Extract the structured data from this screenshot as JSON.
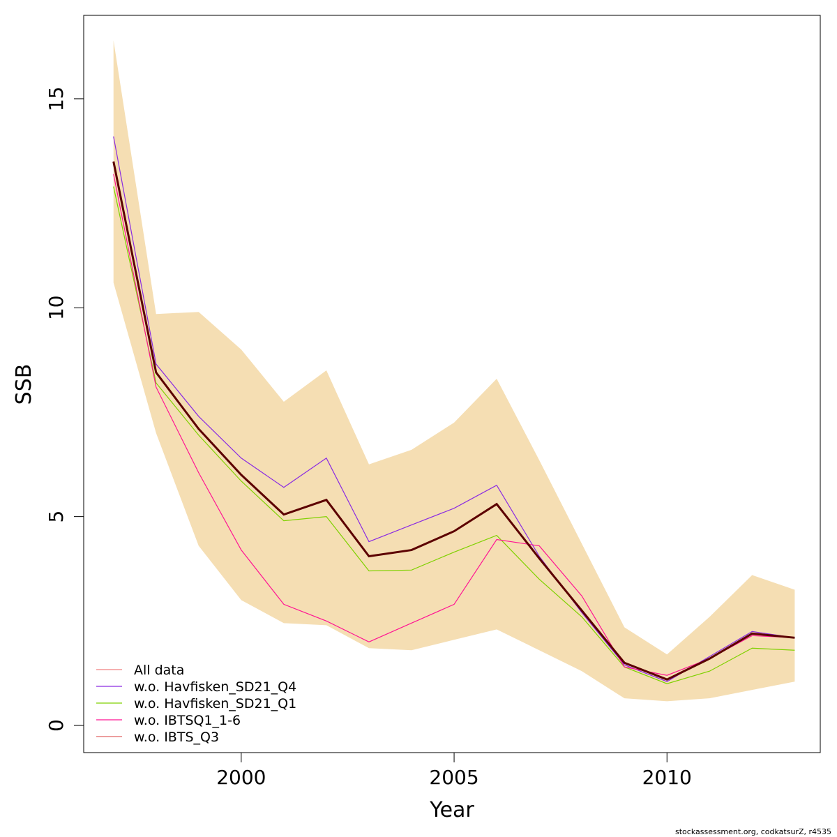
{
  "chart_data": {
    "type": "line",
    "xlabel": "Year",
    "ylabel": "SSB",
    "xlim": [
      1996.3,
      2013.6
    ],
    "ylim": [
      -0.65,
      17.0
    ],
    "x_ticks": [
      2000,
      2005,
      2010
    ],
    "y_ticks": [
      0,
      5,
      10,
      15
    ],
    "x_tick_labels": [
      "2000",
      "2005",
      "2010"
    ],
    "y_tick_labels": [
      "0",
      "5",
      "10",
      "15"
    ],
    "grid": false,
    "legend_position": "bottom-left",
    "x": [
      1997,
      1998,
      1999,
      2000,
      2001,
      2002,
      2003,
      2004,
      2005,
      2006,
      2007,
      2008,
      2009,
      2010,
      2011,
      2012,
      2013
    ],
    "confidence_band": {
      "color": "#F5DEB3",
      "lower": [
        10.6,
        7.0,
        4.3,
        3.0,
        2.45,
        2.4,
        1.85,
        1.8,
        2.05,
        2.3,
        1.8,
        1.3,
        0.65,
        0.58,
        0.65,
        0.85,
        1.05
      ],
      "upper": [
        16.4,
        9.85,
        9.9,
        9.0,
        7.75,
        8.5,
        6.25,
        6.6,
        7.25,
        8.3,
        6.35,
        4.35,
        2.35,
        1.7,
        2.6,
        3.6,
        3.25
      ]
    },
    "main_line": {
      "color": "#5c0000",
      "values": [
        13.5,
        8.45,
        7.1,
        6.0,
        5.05,
        5.4,
        4.05,
        4.2,
        4.65,
        5.3,
        4.0,
        2.75,
        1.5,
        1.1,
        1.6,
        2.2,
        2.1
      ]
    },
    "series": [
      {
        "name": "All data",
        "color": "#F08080",
        "values": [
          13.5,
          8.45,
          7.1,
          6.0,
          5.05,
          5.4,
          4.05,
          4.2,
          4.65,
          5.3,
          4.0,
          2.75,
          1.5,
          1.1,
          1.6,
          2.2,
          2.1
        ]
      },
      {
        "name": "w.o. Havfisken_SD21_Q4",
        "color": "#8A2BE2",
        "values": [
          14.1,
          8.65,
          7.4,
          6.4,
          5.7,
          6.4,
          4.4,
          4.8,
          5.2,
          5.75,
          4.05,
          2.7,
          1.45,
          1.05,
          1.65,
          2.25,
          2.1
        ]
      },
      {
        "name": "w.o. Havfisken_SD21_Q1",
        "color": "#7FD100",
        "values": [
          12.9,
          8.2,
          6.95,
          5.85,
          4.9,
          5.0,
          3.7,
          3.72,
          4.15,
          4.55,
          3.5,
          2.6,
          1.4,
          1.0,
          1.3,
          1.85,
          1.8
        ]
      },
      {
        "name": "w.o. IBTSQ1_1-6",
        "color": "#FF1493",
        "values": [
          13.2,
          8.1,
          6.05,
          4.2,
          2.9,
          2.5,
          2.0,
          2.45,
          2.9,
          4.45,
          4.3,
          3.1,
          1.4,
          1.2,
          1.6,
          2.15,
          2.1
        ]
      },
      {
        "name": "w.o. IBTS_Q3",
        "color": "#E06666",
        "values": [
          13.5,
          8.45,
          7.1,
          6.0,
          5.05,
          5.4,
          4.05,
          4.2,
          4.65,
          5.3,
          4.0,
          2.75,
          1.5,
          1.1,
          1.6,
          2.2,
          2.1
        ]
      }
    ]
  },
  "credit": "stockassessment.org, codkatsurZ, r4535"
}
